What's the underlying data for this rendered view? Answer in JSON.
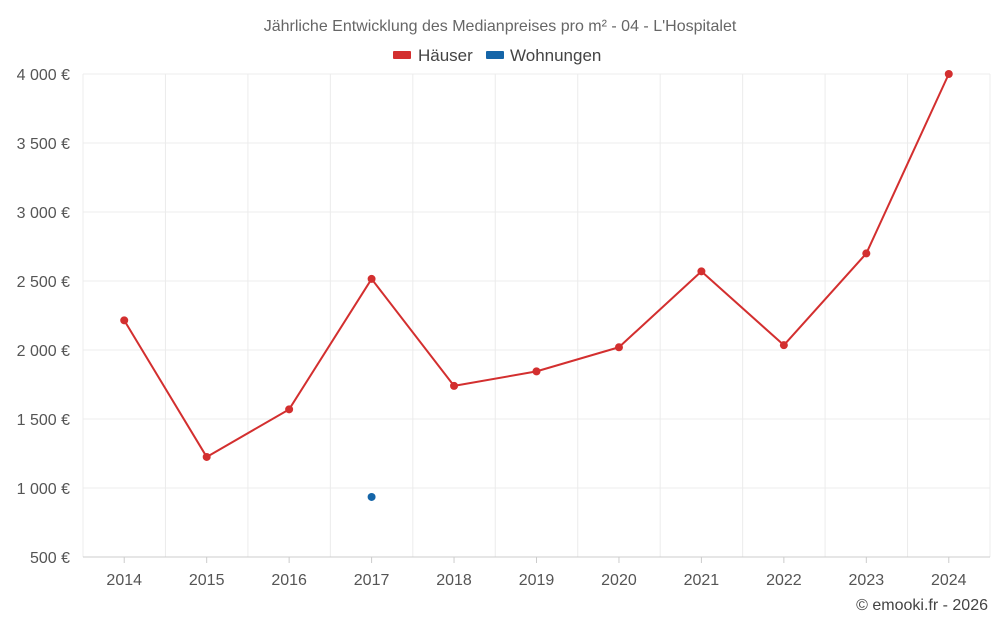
{
  "chart_data": {
    "type": "line",
    "title": "Jährliche Entwicklung des Medianpreises pro m² - 04 - L'Hospitalet",
    "xlabel": "",
    "ylabel": "",
    "categories": [
      "2014",
      "2015",
      "2016",
      "2017",
      "2018",
      "2019",
      "2020",
      "2021",
      "2022",
      "2023",
      "2024"
    ],
    "ylim": [
      500,
      4000
    ],
    "yticks": [
      500,
      1000,
      1500,
      2000,
      2500,
      3000,
      3500,
      4000
    ],
    "ytick_labels": [
      "500 €",
      "1 000 €",
      "1 500 €",
      "2 000 €",
      "2 500 €",
      "3 000 €",
      "3 500 €",
      "4 000 €"
    ],
    "grid": true,
    "legend_position": "top-center",
    "series": [
      {
        "name": "Häuser",
        "color": "#d32f2f",
        "values": [
          2215,
          1225,
          1570,
          2515,
          1740,
          1845,
          2020,
          2570,
          2035,
          2700,
          4000
        ]
      },
      {
        "name": "Wohnungen",
        "color": "#1565a8",
        "values": [
          null,
          null,
          null,
          935,
          null,
          null,
          null,
          null,
          null,
          null,
          null
        ]
      }
    ]
  },
  "credit": "© emooki.fr - 2026"
}
